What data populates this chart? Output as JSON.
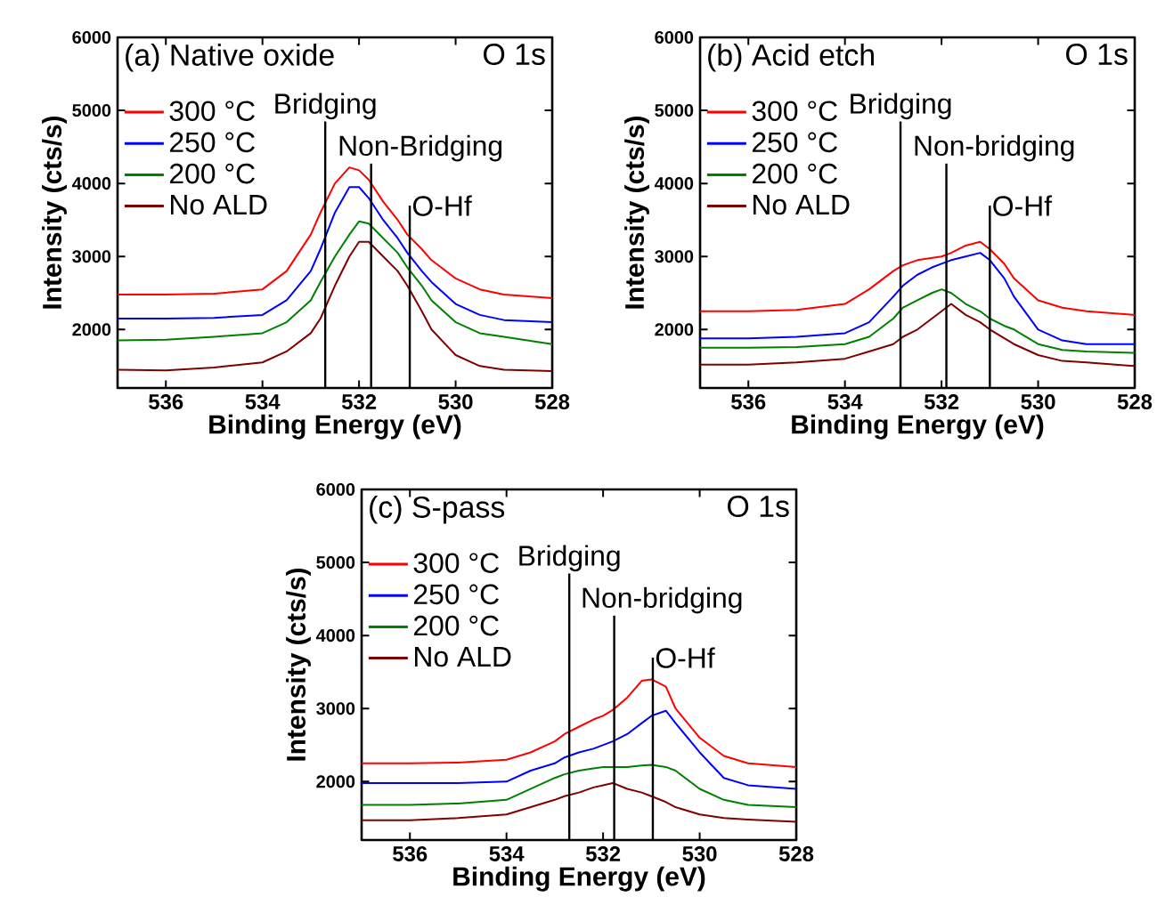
{
  "chart_data": [
    {
      "type": "line",
      "title": "(a) Native oxide",
      "annotations": [
        "O 1s"
      ],
      "xlabel": "Binding Energy (eV)",
      "ylabel": "Intensity (cts/s)",
      "xlim": [
        537,
        528
      ],
      "ylim": [
        1200,
        6000
      ],
      "xticks": [
        536,
        534,
        532,
        530,
        528
      ],
      "yticks": [
        2000,
        3000,
        4000,
        5000,
        6000
      ],
      "legend": "top left",
      "x": [
        537,
        536,
        535,
        534,
        533.5,
        533,
        532.8,
        532.5,
        532.2,
        532,
        531.8,
        531.5,
        531.2,
        531,
        530.7,
        530.5,
        530,
        529.5,
        529,
        528
      ],
      "series": [
        {
          "name": "300 °C",
          "color": "#ff0000",
          "values": [
            2480,
            2480,
            2490,
            2550,
            2800,
            3300,
            3600,
            4000,
            4220,
            4180,
            4050,
            3750,
            3500,
            3300,
            3100,
            2950,
            2700,
            2550,
            2480,
            2430
          ]
        },
        {
          "name": "250 °C",
          "color": "#0000ff",
          "values": [
            2150,
            2150,
            2160,
            2200,
            2400,
            2800,
            3100,
            3600,
            3950,
            3950,
            3800,
            3500,
            3250,
            3050,
            2800,
            2650,
            2350,
            2200,
            2130,
            2100
          ]
        },
        {
          "name": "200 °C",
          "color": "#008000",
          "values": [
            1850,
            1860,
            1900,
            1950,
            2100,
            2400,
            2650,
            3000,
            3300,
            3480,
            3450,
            3250,
            3050,
            2850,
            2600,
            2400,
            2100,
            1950,
            1900,
            1800
          ]
        },
        {
          "name": "No ALD",
          "color": "#800000",
          "values": [
            1450,
            1440,
            1480,
            1550,
            1700,
            1950,
            2150,
            2600,
            3000,
            3200,
            3200,
            3000,
            2800,
            2600,
            2250,
            2000,
            1650,
            1500,
            1450,
            1430
          ]
        }
      ],
      "ref_lines": [
        {
          "axis": "x",
          "value": 532.7,
          "label": "Bridging"
        },
        {
          "axis": "x",
          "value": 531.75,
          "label": "Non-Bridging"
        },
        {
          "axis": "x",
          "value": 530.95,
          "label": "O-Hf"
        }
      ]
    },
    {
      "type": "line",
      "title": "(b) Acid etch",
      "annotations": [
        "O 1s"
      ],
      "xlabel": "Binding Energy (eV)",
      "ylabel": "Intensity (cts/s)",
      "xlim": [
        537,
        528
      ],
      "ylim": [
        1200,
        6000
      ],
      "xticks": [
        536,
        534,
        532,
        530,
        528
      ],
      "yticks": [
        2000,
        3000,
        4000,
        5000,
        6000
      ],
      "legend": "top left",
      "x": [
        537,
        536,
        535,
        534,
        533.5,
        533,
        532.8,
        532.5,
        532.2,
        532,
        531.8,
        531.5,
        531.2,
        531,
        530.7,
        530.5,
        530,
        529.5,
        529,
        528
      ],
      "series": [
        {
          "name": "300 °C",
          "color": "#ff0000",
          "values": [
            2250,
            2250,
            2270,
            2350,
            2550,
            2800,
            2880,
            2950,
            2980,
            3000,
            3050,
            3150,
            3200,
            3100,
            2900,
            2700,
            2400,
            2300,
            2250,
            2200
          ]
        },
        {
          "name": "250 °C",
          "color": "#0000ff",
          "values": [
            1880,
            1880,
            1900,
            1950,
            2100,
            2450,
            2600,
            2750,
            2850,
            2900,
            2950,
            3000,
            3050,
            2950,
            2700,
            2450,
            2000,
            1850,
            1800,
            1800
          ]
        },
        {
          "name": "200 °C",
          "color": "#008000",
          "values": [
            1750,
            1750,
            1760,
            1800,
            1900,
            2150,
            2300,
            2400,
            2500,
            2550,
            2500,
            2350,
            2250,
            2150,
            2050,
            2000,
            1800,
            1720,
            1700,
            1680
          ]
        },
        {
          "name": "No ALD",
          "color": "#800000",
          "values": [
            1520,
            1520,
            1550,
            1600,
            1700,
            1800,
            1900,
            2000,
            2150,
            2250,
            2350,
            2200,
            2100,
            2000,
            1880,
            1800,
            1650,
            1570,
            1550,
            1500
          ]
        }
      ],
      "ref_lines": [
        {
          "axis": "x",
          "value": 532.85,
          "label": "Bridging"
        },
        {
          "axis": "x",
          "value": 531.9,
          "label": "Non-bridging"
        },
        {
          "axis": "x",
          "value": 531.0,
          "label": "O-Hf"
        }
      ]
    },
    {
      "type": "line",
      "title": "(c) S-pass",
      "annotations": [
        "O 1s"
      ],
      "xlabel": "Binding Energy (eV)",
      "ylabel": "Intensity (cts/s)",
      "xlim": [
        537,
        528
      ],
      "ylim": [
        1200,
        6000
      ],
      "xticks": [
        536,
        534,
        532,
        530,
        528
      ],
      "yticks": [
        2000,
        3000,
        4000,
        5000,
        6000
      ],
      "legend": "top left",
      "x": [
        537,
        536,
        535,
        534,
        533.5,
        533,
        532.8,
        532.5,
        532.2,
        532,
        531.8,
        531.5,
        531.2,
        531,
        530.7,
        530.5,
        530,
        529.5,
        529,
        528
      ],
      "series": [
        {
          "name": "300 °C",
          "color": "#ff0000",
          "values": [
            2250,
            2250,
            2260,
            2300,
            2400,
            2550,
            2650,
            2750,
            2850,
            2900,
            2980,
            3150,
            3380,
            3400,
            3300,
            3000,
            2600,
            2350,
            2250,
            2200
          ]
        },
        {
          "name": "250 °C",
          "color": "#0000ff",
          "values": [
            1980,
            1980,
            1980,
            2000,
            2150,
            2250,
            2330,
            2400,
            2450,
            2500,
            2550,
            2650,
            2800,
            2900,
            2970,
            2800,
            2400,
            2050,
            1950,
            1900
          ]
        },
        {
          "name": "200 °C",
          "color": "#008000",
          "values": [
            1680,
            1680,
            1700,
            1750,
            1900,
            2050,
            2100,
            2150,
            2180,
            2200,
            2200,
            2200,
            2220,
            2230,
            2200,
            2150,
            1900,
            1750,
            1680,
            1650
          ]
        },
        {
          "name": "No ALD",
          "color": "#800000",
          "values": [
            1470,
            1470,
            1500,
            1550,
            1650,
            1750,
            1800,
            1850,
            1920,
            1950,
            1980,
            1900,
            1850,
            1800,
            1720,
            1650,
            1550,
            1500,
            1480,
            1450
          ]
        }
      ],
      "ref_lines": [
        {
          "axis": "x",
          "value": 532.7,
          "label": "Bridging"
        },
        {
          "axis": "x",
          "value": 531.77,
          "label": "Non-bridging"
        },
        {
          "axis": "x",
          "value": 530.97,
          "label": "O-Hf"
        }
      ]
    }
  ]
}
